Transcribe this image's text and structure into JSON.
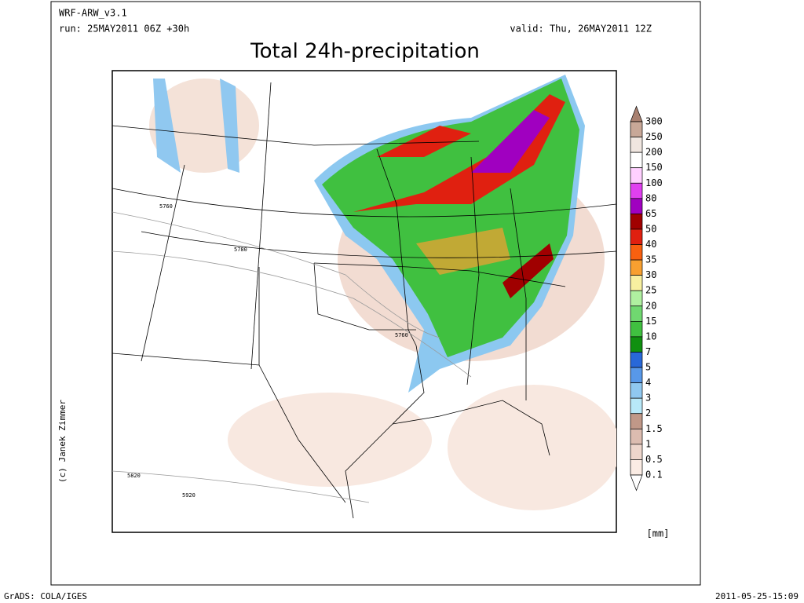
{
  "header": {
    "model": "WRF-ARW_v3.1",
    "run": "run: 25MAY2011 06Z +30h",
    "valid": "valid: Thu, 26MAY2011 12Z",
    "title": "Total 24h-precipitation"
  },
  "credit": "(c) Janek Zimmer",
  "contour_labels": [
    "5760",
    "5780",
    "5760",
    "5820",
    "5920"
  ],
  "colorbar": {
    "labels": [
      "300",
      "250",
      "200",
      "150",
      "100",
      "80",
      "65",
      "50",
      "40",
      "35",
      "30",
      "25",
      "20",
      "15",
      "10",
      "7",
      "5",
      "4",
      "3",
      "2",
      "1.5",
      "1",
      "0.5",
      "0.1"
    ],
    "fill_colors": [
      "#a88070",
      "#c8a898",
      "#f0e6e0",
      "#ffffff",
      "#ffd0ff",
      "#e040f0",
      "#a000c0",
      "#a00000",
      "#e02010",
      "#f86010",
      "#f8a030",
      "#f8f0a0",
      "#b0f0a0",
      "#70d870",
      "#40c040",
      "#109010",
      "#2868d8",
      "#5898e8",
      "#90c8f0",
      "#b8e8f8",
      "#c09888",
      "#dcbcb0",
      "#eed6cc",
      "#fbece4",
      "#ffffff"
    ],
    "unit": "[mm]"
  },
  "footer": {
    "left": "GrADS: COLA/IGES",
    "right": "2011-05-25-15:09"
  }
}
